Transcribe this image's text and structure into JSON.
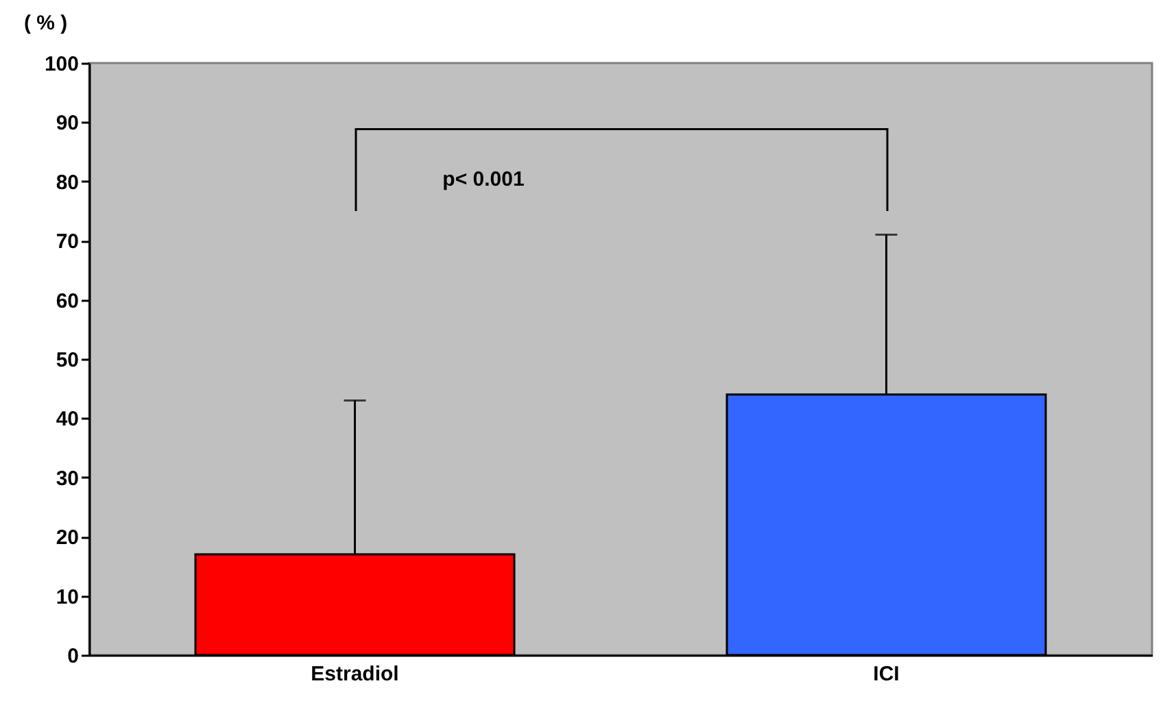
{
  "chart_data": {
    "type": "bar",
    "ylabel": "( % )",
    "categories": [
      "Estradiol",
      "ICI"
    ],
    "values": [
      17,
      44
    ],
    "colors": [
      "#ff0000",
      "#3366ff"
    ],
    "errors": [
      [
        17,
        43
      ],
      [
        44,
        71
      ]
    ],
    "ylim": [
      0,
      100
    ],
    "yticks": [
      0,
      10,
      20,
      30,
      40,
      50,
      60,
      70,
      80,
      90,
      100
    ],
    "grid": false,
    "annotations": [
      "p< 0.001"
    ]
  }
}
